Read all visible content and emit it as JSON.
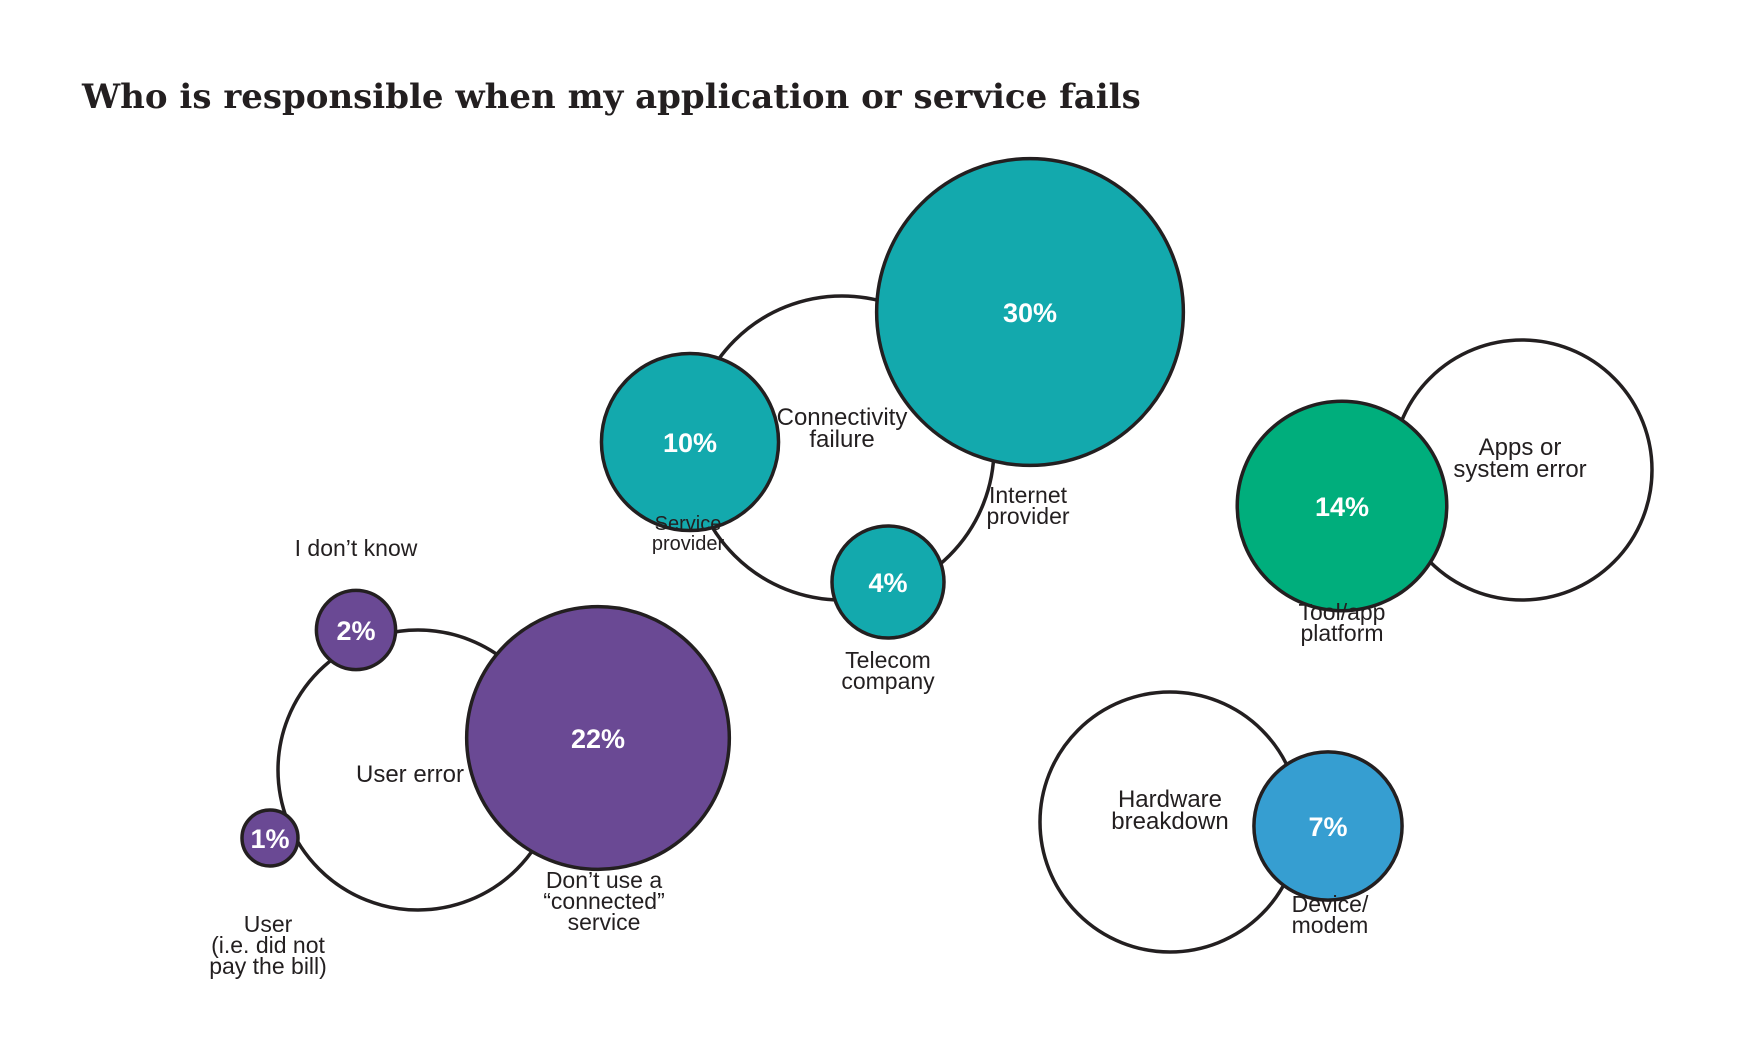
{
  "chart_data": {
    "type": "bubble",
    "title": "Who is responsible when my application or service fails",
    "groups": [
      {
        "name": "Connectivity failure",
        "name_lines": [
          "Connectivity",
          "failure"
        ],
        "items": [
          {
            "label_lines": [
              "Internet",
              "provider"
            ],
            "value": 30,
            "display": "30%",
            "color": "#13a9ad"
          },
          {
            "label_lines": [
              "Service",
              "provider"
            ],
            "value": 10,
            "display": "10%",
            "color": "#13a9ad"
          },
          {
            "label_lines": [
              "Telecom",
              "company"
            ],
            "value": 4,
            "display": "4%",
            "color": "#13a9ad"
          }
        ]
      },
      {
        "name": "Apps or system error",
        "name_lines": [
          "Apps or",
          "system error"
        ],
        "items": [
          {
            "label_lines": [
              "Tool/app",
              "platform"
            ],
            "value": 14,
            "display": "14%",
            "color": "#00ae7c"
          }
        ]
      },
      {
        "name": "User error",
        "name_lines": [
          "User error"
        ],
        "items": [
          {
            "label_lines": [
              "Don’t use a",
              "“connected”",
              "service"
            ],
            "value": 22,
            "display": "22%",
            "color": "#6a4994"
          },
          {
            "label_lines": [
              "I don’t know"
            ],
            "value": 2,
            "display": "2%",
            "color": "#6a4994"
          },
          {
            "label_lines": [
              "User",
              "(i.e. did not",
              "pay the bill)"
            ],
            "value": 1,
            "display": "1%",
            "color": "#6a4994"
          }
        ]
      },
      {
        "name": "Hardware breakdown",
        "name_lines": [
          "Hardware",
          "breakdown"
        ],
        "items": [
          {
            "label_lines": [
              "Device/",
              "modem"
            ],
            "value": 7,
            "display": "7%",
            "color": "#369ed1"
          }
        ]
      }
    ]
  }
}
